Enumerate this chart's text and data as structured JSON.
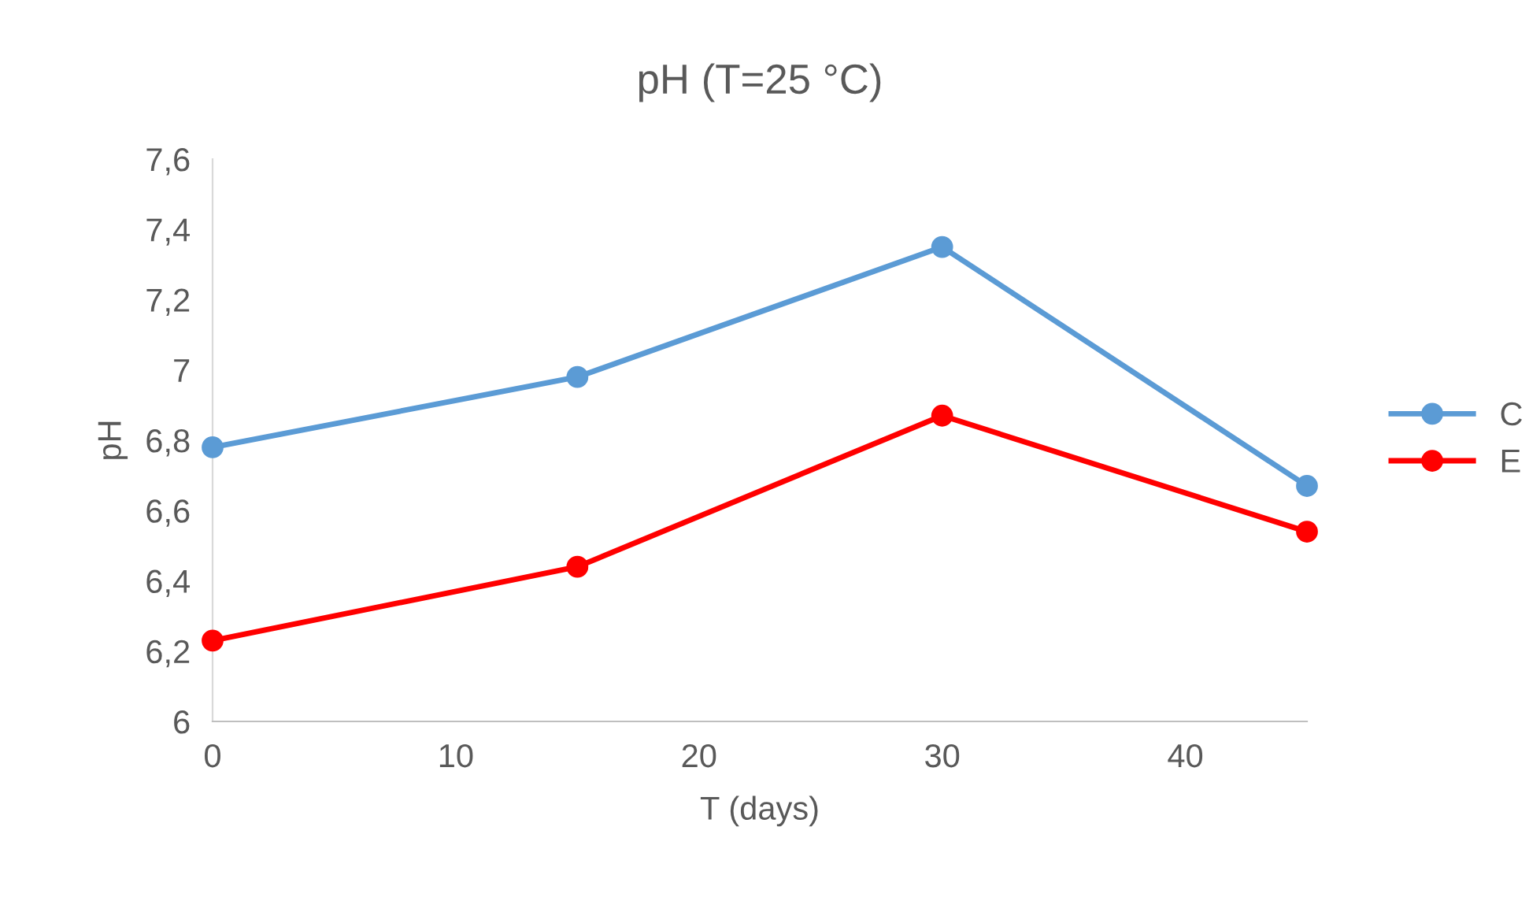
{
  "chart_data": {
    "type": "line",
    "title": "pH (T=25 °C)",
    "xlabel": "T (days)",
    "ylabel": "pH",
    "x": [
      0,
      15,
      30,
      45
    ],
    "series": [
      {
        "name": "C",
        "color": "#5b9bd5",
        "values": [
          6.78,
          6.98,
          7.35,
          6.67
        ]
      },
      {
        "name": "E",
        "color": "#ff0000",
        "values": [
          6.23,
          6.44,
          6.87,
          6.54
        ]
      }
    ],
    "xlim": [
      0,
      45
    ],
    "xticks": [
      0,
      10,
      20,
      30,
      40
    ],
    "ylim": [
      6,
      7.6
    ],
    "yticks": [
      6,
      {
        "value": 6.2,
        "label": "6,2"
      },
      {
        "value": 6.4,
        "label": "6,4"
      },
      {
        "value": 6.6,
        "label": "6,6"
      },
      {
        "value": 6.8,
        "label": "6,8"
      },
      7,
      {
        "value": 7.2,
        "label": "7,2"
      },
      {
        "value": 7.4,
        "label": "7,4"
      },
      {
        "value": 7.6,
        "label": "7,6"
      }
    ],
    "grid": false,
    "legend": "right",
    "marker": "circle",
    "line_style": "solid"
  }
}
